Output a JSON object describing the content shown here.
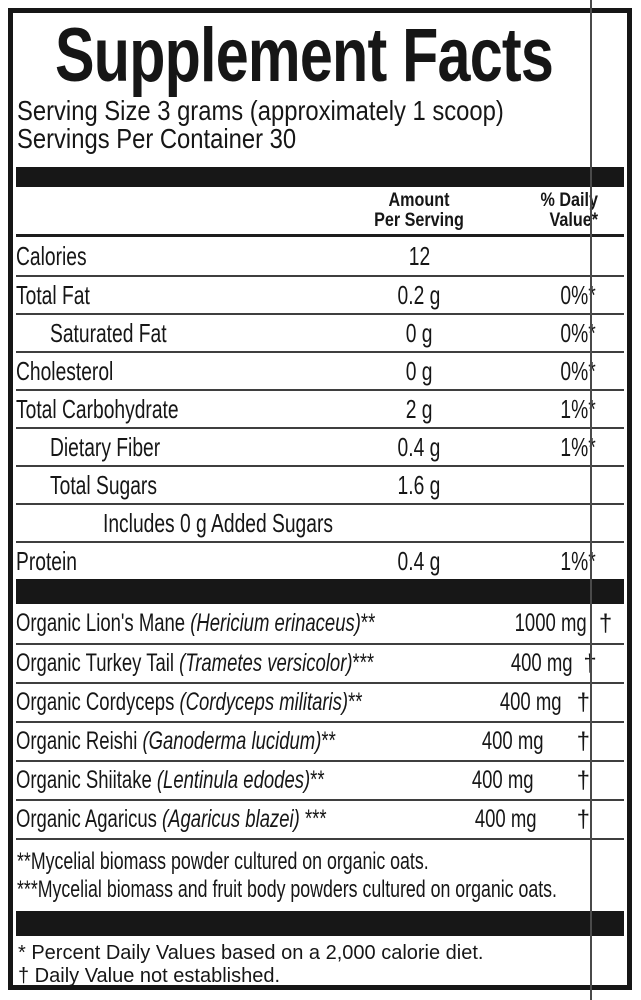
{
  "colors": {
    "ink": "#161616",
    "divider_bar": "#171717",
    "rule_line": "#3f3f3f",
    "crop_line": "#4a4a4a",
    "background": "#ffffff"
  },
  "label": {
    "title": "Supplement Facts",
    "serving_size": "Serving Size 3 grams (approximately 1 scoop)",
    "servings_per_container": "Servings Per Container 30"
  },
  "table": {
    "header": {
      "amount_line1": "Amount",
      "amount_line2": "Per Serving",
      "dv_line1": "% Daily",
      "dv_line2": "Value*"
    },
    "rows": [
      {
        "label": "Calories",
        "amount": "12",
        "dv": ""
      },
      {
        "label": "Total Fat",
        "amount": "0.2 g",
        "dv": "0%*"
      },
      {
        "label": "Saturated Fat",
        "amount": "0 g",
        "dv": "0%*"
      },
      {
        "label": "Cholesterol",
        "amount": "0 g",
        "dv": "0%*"
      },
      {
        "label": "Total Carbohydrate",
        "amount": "2 g",
        "dv": "1%*"
      },
      {
        "label": "Dietary Fiber",
        "amount": "0.4 g",
        "dv": "1%*"
      },
      {
        "label": "Total Sugars",
        "amount": "1.6 g",
        "dv": ""
      },
      {
        "label": "Includes 0 g Added Sugars",
        "amount": "",
        "dv": ""
      },
      {
        "label": "Protein",
        "amount": "0.4 g",
        "dv": "1%*"
      }
    ]
  },
  "ingredients": {
    "rows": [
      {
        "name": "Organic Lion's Mane",
        "latin": "(Hericium erinaceus)",
        "marks": "**",
        "amount": "1000 mg",
        "dv": "†"
      },
      {
        "name": "Organic Turkey Tail",
        "latin": "(Trametes versicolor)",
        "marks": "***",
        "amount": "400 mg",
        "dv": "†"
      },
      {
        "name": "Organic Cordyceps",
        "latin": "(Cordyceps militaris)",
        "marks": "**",
        "amount": "400 mg",
        "dv": "†"
      },
      {
        "name": "Organic Reishi",
        "latin": "(Ganoderma lucidum)",
        "marks": "**",
        "amount": "400 mg",
        "dv": "†"
      },
      {
        "name": "Organic Shiitake",
        "latin": "(Lentinula edodes)",
        "marks": "**",
        "amount": "400 mg",
        "dv": "†"
      },
      {
        "name": "Organic Agaricus",
        "latin": "(Agaricus blazei)",
        "marks": " ***",
        "amount": "400 mg",
        "dv": "†"
      }
    ]
  },
  "footnotes": {
    "mycelial_line1": "**Mycelial biomass powder cultured on organic oats.",
    "mycelial_line2": "***Mycelial biomass and fruit body powders cultured on organic oats.",
    "dv_line1": "* Percent Daily Values based on a 2,000 calorie diet.",
    "dv_line2": "† Daily Value not established."
  }
}
